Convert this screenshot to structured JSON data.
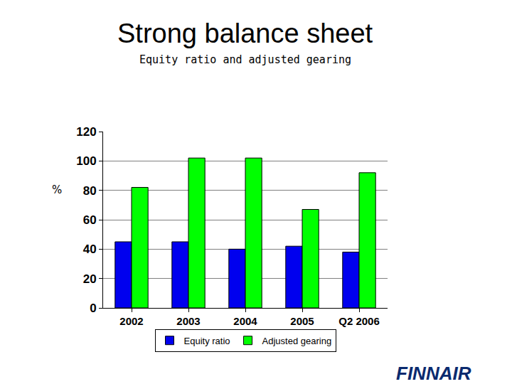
{
  "chart_data": {
    "type": "bar",
    "title": "Strong balance sheet",
    "subtitle": "Equity ratio and adjusted gearing",
    "ylabel": "%",
    "categories": [
      "2002",
      "2003",
      "2004",
      "2005",
      "Q2 2006"
    ],
    "series": [
      {
        "name": "Equity ratio",
        "color": "#0000ee",
        "values": [
          45,
          45,
          40,
          42,
          38
        ]
      },
      {
        "name": "Adjusted gearing",
        "color": "#00ff00",
        "values": [
          82,
          102,
          102,
          67,
          92
        ]
      }
    ],
    "ylim": [
      0,
      120
    ],
    "yticks": [
      0,
      20,
      40,
      60,
      80,
      100,
      120
    ],
    "grid": true,
    "legend": "bottom"
  },
  "logo": "FINNAIR"
}
